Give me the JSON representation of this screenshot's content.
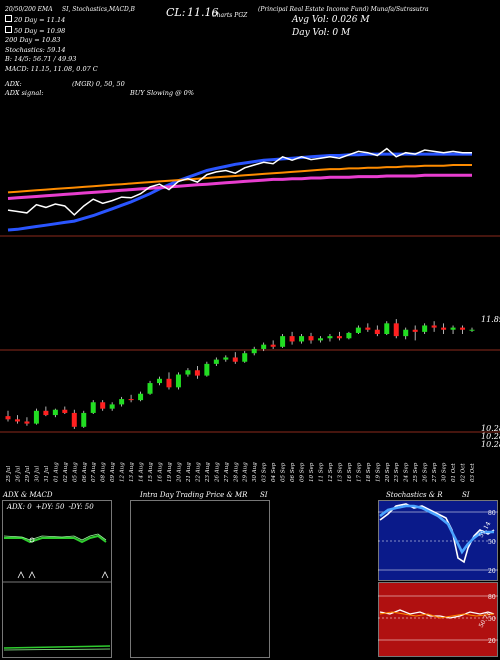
{
  "header": {
    "left": "20/50/200 EMA",
    "mid": "SI, Stochastics,MACD,B",
    "cl_label": "CL:",
    "cl_value": "11.16",
    "chart_label": "Charts PGZ",
    "title": "(Principal Real Estate Income Fund) Munafa/Sutrasutra",
    "avg_vol": "Avg Vol: 0.026  M",
    "day_vol": "Day Vol: 0  M"
  },
  "info": {
    "ema20": "20  Day = 11.14",
    "ema50": "50  Day = 10.98",
    "ema200": "200  Day = 10.83",
    "stochastics": "Stochastics: 59.14",
    "bb": "B: 14/5: 56.71 / 49.93",
    "macd": "MACD: 11.15,  11.08,  0.07 C",
    "adx": "ADX:",
    "adx_mgr": "(MGR) 0,  50,  50",
    "adx_signal": "ADX  signal:",
    "buy_slowing": "BUY Slowing @ 0%"
  },
  "price_labels": {
    "p1": "11.89",
    "p2": "10.28",
    "p3": "10.28",
    "p4": "10.28"
  },
  "dates": [
    "25 Jul",
    "26 Jul",
    "29 Jul",
    "30 Jul",
    "31 Jul",
    "01 Aug",
    "02 Aug",
    "05 Aug",
    "06 Aug",
    "07 Aug",
    "08 Aug",
    "09 Aug",
    "12 Aug",
    "13 Aug",
    "14 Aug",
    "15 Aug",
    "16 Aug",
    "19 Aug",
    "20 Aug",
    "21 Aug",
    "22 Aug",
    "23 Aug",
    "26 Aug",
    "27 Aug",
    "28 Aug",
    "29 Aug",
    "30 Aug",
    "03 Sep",
    "04 Sep",
    "05 Sep",
    "06 Sep",
    "09 Sep",
    "10 Sep",
    "11 Sep",
    "12 Sep",
    "13 Sep",
    "16 Sep",
    "17 Sep",
    "18 Sep",
    "19 Sep",
    "20 Sep",
    "23 Sep",
    "24 Sep",
    "25 Sep",
    "26 Sep",
    "27 Sep",
    "30 Sep",
    "01 Oct",
    "02 Oct",
    "03 Oct"
  ],
  "panels": {
    "adx": {
      "title": "ADX  & MACD",
      "legend_adx": "ADX: 0",
      "legend_plus": "+DY: 50",
      "legend_minus": "-DY: 50"
    },
    "intraday": {
      "title": "Intra Day Trading Price  & MR",
      "si": "SI"
    },
    "stoch": {
      "title": "Stochastics & R",
      "si": "SI",
      "ticks": [
        "80",
        "50",
        "20"
      ],
      "value": "59.14",
      "rsi_value": "50.71"
    }
  },
  "colors": {
    "ema20": "#2a55ff",
    "ema50": "#ff8c00",
    "ema200": "#e83ecf",
    "up": "#22dd22",
    "down": "#ff2020",
    "bg": "#000000"
  },
  "chart_data": {
    "type": "candlestick",
    "series": [
      {
        "name": "20 Day",
        "values": [
          10.03,
          10.04,
          10.06,
          10.08,
          10.1,
          10.12,
          10.14,
          10.16,
          10.2,
          10.24,
          10.29,
          10.34,
          10.39,
          10.44,
          10.5,
          10.56,
          10.63,
          10.69,
          10.75,
          10.8,
          10.85,
          10.9,
          10.93,
          10.96,
          10.99,
          11.01,
          11.03,
          11.05,
          11.06,
          11.07,
          11.08,
          11.09,
          11.1,
          11.11,
          11.12,
          11.12,
          11.13,
          11.13,
          11.14,
          11.14,
          11.14,
          11.14,
          11.14,
          11.14,
          11.14,
          11.14,
          11.14,
          11.14,
          11.14,
          11.14
        ]
      },
      {
        "name": "50 Day",
        "values": [
          10.58,
          10.59,
          10.6,
          10.61,
          10.62,
          10.63,
          10.64,
          10.65,
          10.66,
          10.67,
          10.68,
          10.69,
          10.7,
          10.71,
          10.72,
          10.73,
          10.74,
          10.75,
          10.76,
          10.77,
          10.78,
          10.79,
          10.8,
          10.81,
          10.82,
          10.83,
          10.84,
          10.85,
          10.86,
          10.87,
          10.88,
          10.89,
          10.9,
          10.91,
          10.92,
          10.92,
          10.93,
          10.93,
          10.94,
          10.94,
          10.95,
          10.95,
          10.96,
          10.96,
          10.97,
          10.97,
          10.97,
          10.98,
          10.98,
          10.98
        ]
      },
      {
        "name": "200 Day",
        "values": [
          10.49,
          10.5,
          10.51,
          10.52,
          10.53,
          10.54,
          10.55,
          10.56,
          10.57,
          10.58,
          10.59,
          10.6,
          10.61,
          10.62,
          10.63,
          10.64,
          10.65,
          10.66,
          10.67,
          10.68,
          10.69,
          10.7,
          10.71,
          10.72,
          10.73,
          10.74,
          10.75,
          10.76,
          10.77,
          10.77,
          10.78,
          10.78,
          10.79,
          10.79,
          10.8,
          10.8,
          10.8,
          10.81,
          10.81,
          10.81,
          10.82,
          10.82,
          10.82,
          10.82,
          10.83,
          10.83,
          10.83,
          10.83,
          10.83,
          10.83
        ]
      }
    ],
    "ohlc": [
      [
        10.35,
        10.4,
        10.3,
        10.32
      ],
      [
        10.32,
        10.36,
        10.28,
        10.3
      ],
      [
        10.3,
        10.34,
        10.26,
        10.28
      ],
      [
        10.28,
        10.42,
        10.27,
        10.4
      ],
      [
        10.4,
        10.44,
        10.35,
        10.36
      ],
      [
        10.36,
        10.42,
        10.34,
        10.41
      ],
      [
        10.41,
        10.44,
        10.37,
        10.38
      ],
      [
        10.38,
        10.41,
        10.23,
        10.25
      ],
      [
        10.25,
        10.4,
        10.24,
        10.38
      ],
      [
        10.38,
        10.5,
        10.37,
        10.48
      ],
      [
        10.48,
        10.5,
        10.4,
        10.42
      ],
      [
        10.42,
        10.48,
        10.4,
        10.46
      ],
      [
        10.46,
        10.53,
        10.44,
        10.51
      ],
      [
        10.51,
        10.55,
        10.48,
        10.5
      ],
      [
        10.5,
        10.58,
        10.49,
        10.56
      ],
      [
        10.56,
        10.68,
        10.55,
        10.66
      ],
      [
        10.66,
        10.72,
        10.64,
        10.7
      ],
      [
        10.7,
        10.76,
        10.6,
        10.62
      ],
      [
        10.62,
        10.76,
        10.6,
        10.74
      ],
      [
        10.74,
        10.8,
        10.72,
        10.78
      ],
      [
        10.78,
        10.82,
        10.7,
        10.73
      ],
      [
        10.73,
        10.86,
        10.72,
        10.84
      ],
      [
        10.84,
        10.9,
        10.82,
        10.88
      ],
      [
        10.88,
        10.92,
        10.86,
        10.9
      ],
      [
        10.9,
        10.95,
        10.84,
        10.86
      ],
      [
        10.86,
        10.96,
        10.85,
        10.94
      ],
      [
        10.94,
        11.0,
        10.92,
        10.98
      ],
      [
        10.98,
        11.04,
        10.96,
        11.02
      ],
      [
        11.02,
        11.06,
        10.98,
        11.0
      ],
      [
        11.0,
        11.12,
        10.99,
        11.1
      ],
      [
        11.1,
        11.14,
        11.02,
        11.05
      ],
      [
        11.05,
        11.12,
        11.03,
        11.1
      ],
      [
        11.1,
        11.13,
        11.03,
        11.06
      ],
      [
        11.06,
        11.1,
        11.04,
        11.08
      ],
      [
        11.08,
        11.12,
        11.05,
        11.1
      ],
      [
        11.1,
        11.14,
        11.06,
        11.08
      ],
      [
        11.08,
        11.14,
        11.07,
        11.13
      ],
      [
        11.13,
        11.2,
        11.12,
        11.18
      ],
      [
        11.18,
        11.22,
        11.14,
        11.16
      ],
      [
        11.16,
        11.2,
        11.1,
        11.12
      ],
      [
        11.12,
        11.24,
        11.11,
        11.22
      ],
      [
        11.22,
        11.26,
        11.08,
        11.1
      ],
      [
        11.1,
        11.18,
        11.07,
        11.16
      ],
      [
        11.16,
        11.2,
        11.06,
        11.14
      ],
      [
        11.14,
        11.22,
        11.12,
        11.2
      ],
      [
        11.2,
        11.24,
        11.14,
        11.18
      ],
      [
        11.18,
        11.22,
        11.12,
        11.16
      ],
      [
        11.16,
        11.2,
        11.12,
        11.18
      ],
      [
        11.18,
        11.2,
        11.12,
        11.16
      ],
      [
        11.16,
        11.18,
        11.14,
        11.16
      ]
    ]
  }
}
